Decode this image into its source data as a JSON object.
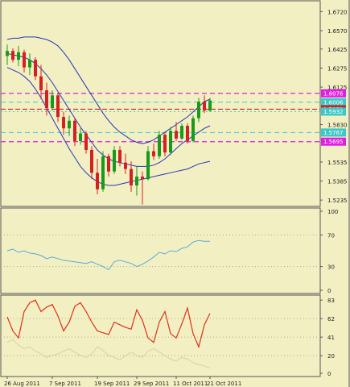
{
  "colors": {
    "background": "#f2f0c3",
    "frame": "#555555",
    "bull": "#1a9a1a",
    "bear": "#d42020",
    "bands": "#2535b8",
    "pink": "#e020e0",
    "cyan": "#3cc8c8",
    "redline": "#d42020",
    "rsi": "#5aa8d8",
    "stoch": "#e03018",
    "stoch_faint": "#d8cfa0",
    "guides": "#a8a898"
  },
  "chart_data": [
    {
      "type": "candlestick",
      "panel": "price",
      "ylim": [
        1.5185,
        1.6805
      ],
      "grid": false,
      "yticks": [
        "1.6720",
        "1.6570",
        "1.6425",
        "1.6275",
        "1.6125",
        "1.5830",
        "1.5535",
        "1.5385",
        "1.5235"
      ],
      "levels": [
        {
          "label": "1.6076",
          "value": 1.6076,
          "style": "pink"
        },
        {
          "label": "1.6006",
          "value": 1.6006,
          "style": "cyan"
        },
        {
          "label": "1.5951",
          "value": 1.5951,
          "style": "red"
        },
        {
          "label": "1.5932",
          "value": 1.5932,
          "style": "cyan-dot"
        },
        {
          "label": "1.5767",
          "value": 1.5767,
          "style": "cyan"
        },
        {
          "label": "1.5695",
          "value": 1.5695,
          "style": "pink"
        }
      ],
      "candles": [
        [
          1.637,
          1.646,
          1.63,
          1.641
        ],
        [
          1.641,
          1.643,
          1.632,
          1.634
        ],
        [
          1.634,
          1.645,
          1.629,
          1.64
        ],
        [
          1.64,
          1.642,
          1.624,
          1.628
        ],
        [
          1.628,
          1.639,
          1.622,
          1.634
        ],
        [
          1.634,
          1.636,
          1.618,
          1.621
        ],
        [
          1.621,
          1.63,
          1.603,
          1.61
        ],
        [
          1.61,
          1.616,
          1.59,
          1.596
        ],
        [
          1.596,
          1.61,
          1.594,
          1.606
        ],
        [
          1.606,
          1.608,
          1.585,
          1.589
        ],
        [
          1.589,
          1.593,
          1.575,
          1.58
        ],
        [
          1.58,
          1.59,
          1.574,
          1.586
        ],
        [
          1.586,
          1.588,
          1.566,
          1.57
        ],
        [
          1.57,
          1.58,
          1.567,
          1.576
        ],
        [
          1.576,
          1.578,
          1.56,
          1.563
        ],
        [
          1.563,
          1.566,
          1.54,
          1.545
        ],
        [
          1.545,
          1.556,
          1.528,
          1.532
        ],
        [
          1.532,
          1.562,
          1.53,
          1.558
        ],
        [
          1.558,
          1.56,
          1.542,
          1.546
        ],
        [
          1.546,
          1.566,
          1.544,
          1.563
        ],
        [
          1.563,
          1.566,
          1.55,
          1.553
        ],
        [
          1.553,
          1.56,
          1.544,
          1.548
        ],
        [
          1.548,
          1.554,
          1.53,
          1.535
        ],
        [
          1.535,
          1.55,
          1.527,
          1.542
        ],
        [
          1.542,
          1.546,
          1.52,
          1.54
        ],
        [
          1.54,
          1.566,
          1.539,
          1.562
        ],
        [
          1.562,
          1.568,
          1.555,
          1.558
        ],
        [
          1.558,
          1.578,
          1.556,
          1.575
        ],
        [
          1.575,
          1.577,
          1.558,
          1.561
        ],
        [
          1.561,
          1.581,
          1.559,
          1.578
        ],
        [
          1.578,
          1.585,
          1.57,
          1.572
        ],
        [
          1.572,
          1.584,
          1.571,
          1.582
        ],
        [
          1.582,
          1.584,
          1.568,
          1.57
        ],
        [
          1.57,
          1.59,
          1.569,
          1.588
        ],
        [
          1.588,
          1.604,
          1.585,
          1.601
        ],
        [
          1.601,
          1.606,
          1.592,
          1.594
        ],
        [
          1.594,
          1.604,
          1.593,
          1.602
        ]
      ],
      "bands": {
        "upper": [
          1.65,
          1.651,
          1.651,
          1.652,
          1.652,
          1.652,
          1.651,
          1.65,
          1.648,
          1.645,
          1.64,
          1.634,
          1.627,
          1.62,
          1.613,
          1.606,
          1.599,
          1.592,
          1.586,
          1.581,
          1.577,
          1.574,
          1.571,
          1.569,
          1.568,
          1.569,
          1.571,
          1.574,
          1.577,
          1.58,
          1.583,
          1.586,
          1.589,
          1.593,
          1.597,
          1.601,
          1.603
        ],
        "middle": [
          1.639,
          1.638,
          1.637,
          1.636,
          1.634,
          1.631,
          1.627,
          1.622,
          1.616,
          1.609,
          1.602,
          1.595,
          1.588,
          1.581,
          1.575,
          1.569,
          1.563,
          1.559,
          1.556,
          1.554,
          1.553,
          1.552,
          1.551,
          1.55,
          1.55,
          1.55,
          1.551,
          1.553,
          1.556,
          1.56,
          1.564,
          1.568,
          1.571,
          1.574,
          1.577,
          1.58,
          1.582
        ],
        "lower": [
          1.628,
          1.626,
          1.624,
          1.621,
          1.617,
          1.611,
          1.604,
          1.596,
          1.588,
          1.58,
          1.572,
          1.564,
          1.557,
          1.55,
          1.545,
          1.541,
          1.538,
          1.536,
          1.535,
          1.535,
          1.536,
          1.537,
          1.538,
          1.539,
          1.54,
          1.541,
          1.542,
          1.543,
          1.544,
          1.545,
          1.546,
          1.547,
          1.548,
          1.55,
          1.552,
          1.553,
          1.554
        ]
      }
    },
    {
      "type": "line",
      "panel": "rsi",
      "ylim": [
        0,
        100
      ],
      "yticks": [
        "100",
        "70",
        "30",
        "0"
      ],
      "guides": [
        70,
        30
      ],
      "values": [
        50,
        52,
        48,
        50,
        47,
        46,
        44,
        40,
        42,
        40,
        38,
        37,
        36,
        35,
        34,
        36,
        33,
        30,
        26,
        36,
        38,
        36,
        34,
        30,
        33,
        37,
        42,
        48,
        46,
        50,
        49,
        53,
        55,
        61,
        63,
        62,
        62
      ]
    },
    {
      "type": "line",
      "panel": "stochastic",
      "ylim": [
        0,
        85
      ],
      "yticks": [
        "83",
        "62",
        "41",
        "20",
        "0"
      ],
      "guides": [
        62,
        41,
        20
      ],
      "values": [
        64,
        48,
        40,
        70,
        80,
        83,
        70,
        75,
        78,
        65,
        48,
        58,
        76,
        80,
        70,
        58,
        48,
        46,
        44,
        58,
        55,
        52,
        50,
        72,
        60,
        40,
        35,
        58,
        70,
        45,
        40,
        56,
        74,
        45,
        30,
        55,
        68
      ],
      "signal": [
        35,
        38,
        32,
        28,
        30,
        25,
        22,
        18,
        20,
        22,
        25,
        28,
        24,
        20,
        18,
        22,
        30,
        26,
        20,
        18,
        15,
        20,
        24,
        20,
        18,
        25,
        28,
        24,
        20,
        16,
        14,
        18,
        16,
        12,
        10,
        8,
        6
      ]
    }
  ],
  "x_labels": [
    {
      "label": "26 Aug 2011",
      "bar": 0
    },
    {
      "label": "7 Sep 2011",
      "bar": 8
    },
    {
      "label": "19 Sep 2011",
      "bar": 16
    },
    {
      "label": "29 Sep 2011",
      "bar": 23
    },
    {
      "label": "11 Oct 2011",
      "bar": 30
    },
    {
      "label": "21 Oct 2011",
      "bar": 36
    }
  ]
}
